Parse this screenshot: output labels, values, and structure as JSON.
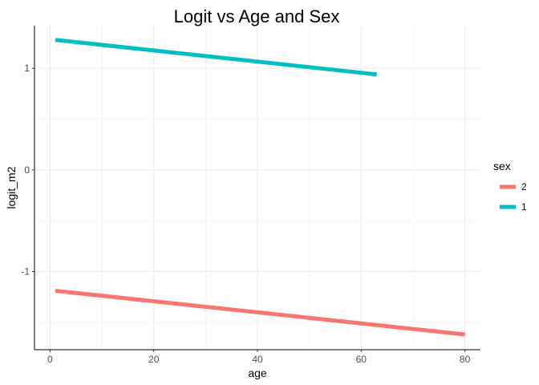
{
  "chart_data": {
    "type": "line",
    "title": "Logit vs Age and Sex",
    "xlabel": "age",
    "ylabel": "logit_m2",
    "xlim": [
      -3,
      83
    ],
    "ylim": [
      -1.77,
      1.42
    ],
    "x_ticks": [
      0,
      20,
      40,
      60,
      80
    ],
    "x_tick_labels": [
      "0",
      "20",
      "40",
      "60",
      "80"
    ],
    "x_minor_ticks": [
      10,
      30,
      50,
      70
    ],
    "y_ticks": [
      -1,
      0,
      1
    ],
    "y_tick_labels": [
      "-1",
      "0",
      "1"
    ],
    "y_minor_ticks": [
      -1.5,
      -0.5,
      0.5
    ],
    "grid": true,
    "legend": {
      "title": "sex",
      "position": "right",
      "entries": [
        "2",
        "1"
      ]
    },
    "series": [
      {
        "name": "2",
        "color": "#F8766D",
        "x": [
          1,
          80
        ],
        "values": [
          -1.19,
          -1.62
        ]
      },
      {
        "name": "1",
        "color": "#00BFC4",
        "x": [
          1,
          63
        ],
        "values": [
          1.28,
          0.94
        ]
      }
    ]
  }
}
